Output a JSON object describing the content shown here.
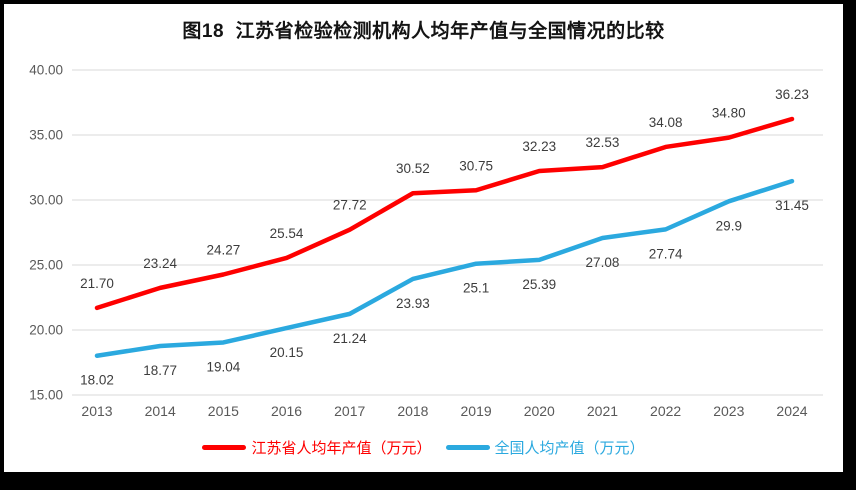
{
  "title": "图18  江苏省检验检测机构人均年产值与全国情况的比较",
  "chart_data": {
    "type": "line",
    "title": "图18  江苏省检验检测机构人均年产值与全国情况的比较",
    "categories": [
      "2013",
      "2014",
      "2015",
      "2016",
      "2017",
      "2018",
      "2019",
      "2020",
      "2021",
      "2022",
      "2023",
      "2024"
    ],
    "series": [
      {
        "name": "江苏省人均年产值（万元）",
        "color": "#fe0000",
        "values": [
          21.7,
          23.24,
          24.27,
          25.54,
          27.72,
          30.52,
          30.75,
          32.23,
          32.53,
          34.08,
          34.8,
          36.23
        ],
        "labels": [
          "21.70",
          "23.24",
          "24.27",
          "25.54",
          "27.72",
          "30.52",
          "30.75",
          "32.23",
          "32.53",
          "34.08",
          "34.80",
          "36.23"
        ],
        "label_position": "above"
      },
      {
        "name": "全国人均产值（万元）",
        "color": "#2ba9df",
        "values": [
          18.02,
          18.77,
          19.04,
          20.15,
          21.24,
          23.93,
          25.1,
          25.39,
          27.08,
          27.74,
          29.9,
          31.45
        ],
        "labels": [
          "18.02",
          "18.77",
          "19.04",
          "20.15",
          "21.24",
          "23.93",
          "25.1",
          "25.39",
          "27.08",
          "27.74",
          "29.9",
          "31.45"
        ],
        "label_position": "below"
      }
    ],
    "ylim": [
      15,
      40
    ],
    "ytick_step": 5,
    "ytick_labels": [
      "15.00",
      "20.00",
      "25.00",
      "30.00",
      "35.00",
      "40.00"
    ],
    "grid": true,
    "gridline_color": "#d9d9d9",
    "legend_position": "bottom"
  }
}
